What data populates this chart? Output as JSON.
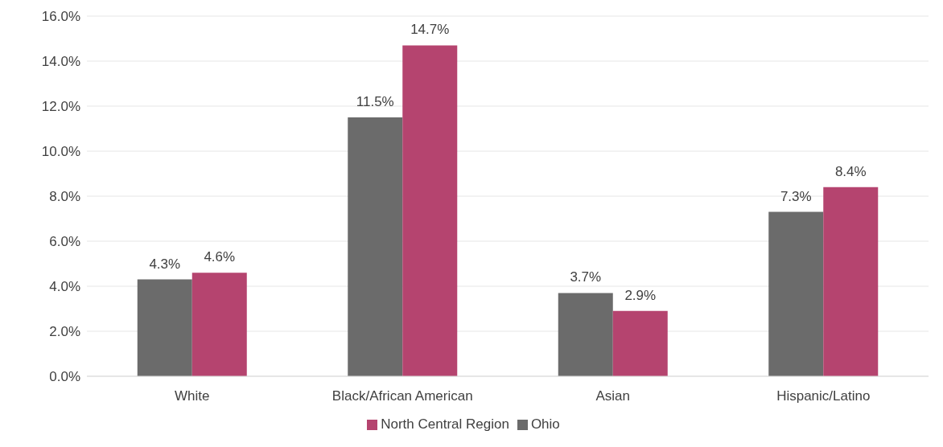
{
  "chart_data": {
    "type": "bar",
    "categories": [
      "White",
      "Black/African American",
      "Asian",
      "Hispanic/Latino"
    ],
    "series": [
      {
        "name": "Ohio",
        "color": "#6b6b6b",
        "values": [
          4.3,
          11.5,
          3.7,
          7.3
        ],
        "value_labels": [
          "4.3%",
          "11.5%",
          "3.7%",
          "7.3%"
        ]
      },
      {
        "name": "North Central Region",
        "color": "#b5446f",
        "values": [
          4.6,
          14.7,
          2.9,
          8.4
        ],
        "value_labels": [
          "4.6%",
          "14.7%",
          "2.9%",
          "8.4%"
        ]
      }
    ],
    "ylim": [
      0,
      16
    ],
    "yticks": [
      {
        "value": 0,
        "label": "0.0%"
      },
      {
        "value": 2,
        "label": "2.0%"
      },
      {
        "value": 4,
        "label": "4.0%"
      },
      {
        "value": 6,
        "label": "6.0%"
      },
      {
        "value": 8,
        "label": "8.0%"
      },
      {
        "value": 10,
        "label": "10.0%"
      },
      {
        "value": 12,
        "label": "12.0%"
      },
      {
        "value": 14,
        "label": "14.0%"
      },
      {
        "value": 16,
        "label": "16.0%"
      }
    ],
    "grid": "y",
    "legend": "bottom"
  }
}
